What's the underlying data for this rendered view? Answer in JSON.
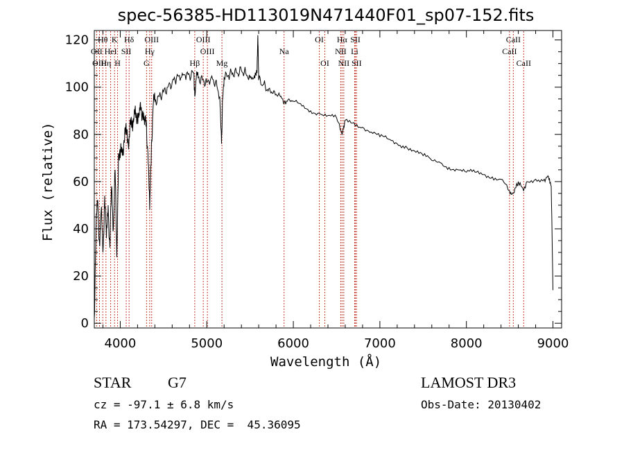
{
  "chart_data": {
    "type": "line",
    "title": "spec-56385-HD113019N471440F01_sp07-152.fits",
    "xlabel": "Wavelength (Å)",
    "ylabel": "Flux (relative)",
    "xlim": [
      3700,
      9100
    ],
    "ylim": [
      -2,
      124
    ],
    "xticks": [
      4000,
      5000,
      6000,
      7000,
      8000,
      9000
    ],
    "yticks": [
      0,
      20,
      40,
      60,
      80,
      100,
      120
    ],
    "grid": false,
    "series": [
      {
        "name": "flux",
        "x": [
          3700,
          3720,
          3740,
          3760,
          3780,
          3800,
          3820,
          3840,
          3860,
          3880,
          3900,
          3920,
          3940,
          3960,
          3980,
          4000,
          4020,
          4040,
          4060,
          4080,
          4100,
          4120,
          4140,
          4160,
          4180,
          4200,
          4220,
          4240,
          4260,
          4280,
          4300,
          4320,
          4340,
          4360,
          4380,
          4400,
          4450,
          4500,
          4550,
          4600,
          4650,
          4700,
          4750,
          4800,
          4850,
          4861,
          4880,
          4900,
          4950,
          5000,
          5050,
          5100,
          5150,
          5170,
          5183,
          5200,
          5250,
          5300,
          5350,
          5400,
          5450,
          5500,
          5550,
          5580,
          5590,
          5600,
          5650,
          5700,
          5750,
          5800,
          5850,
          5893,
          5950,
          6000,
          6100,
          6200,
          6300,
          6400,
          6500,
          6563,
          6600,
          6700,
          6800,
          6900,
          7000,
          7100,
          7200,
          7300,
          7400,
          7500,
          7600,
          7700,
          7800,
          7900,
          8000,
          8100,
          8200,
          8300,
          8400,
          8498,
          8542,
          8600,
          8662,
          8700,
          8800,
          8900,
          8950,
          8980,
          9000
        ],
        "values": [
          2,
          40,
          52,
          34,
          48,
          30,
          54,
          36,
          50,
          32,
          58,
          40,
          65,
          28,
          72,
          70,
          74,
          76,
          80,
          82,
          76,
          84,
          86,
          88,
          87,
          89,
          88,
          91,
          90,
          84,
          86,
          72,
          48,
          76,
          92,
          94,
          96,
          98,
          100,
          102,
          104,
          104,
          105,
          105,
          106,
          96,
          105,
          104,
          103,
          102,
          104,
          102,
          96,
          76,
          95,
          104,
          105,
          106,
          106,
          107,
          106,
          104,
          105,
          106,
          122,
          103,
          101,
          99,
          98,
          97,
          96,
          93,
          95,
          94,
          92,
          90,
          89,
          88,
          87,
          80,
          86,
          85,
          83,
          81,
          79,
          78,
          76,
          75,
          73,
          71,
          69,
          68,
          66,
          65,
          64,
          64,
          63,
          62,
          61,
          56,
          55,
          60,
          56,
          60,
          61,
          61,
          62,
          58,
          14
        ]
      }
    ],
    "lines": [
      {
        "label": "Hθ",
        "x": 3798,
        "row": 1
      },
      {
        "label": "K",
        "x": 3934,
        "row": 1
      },
      {
        "label": "Hδ",
        "x": 4102,
        "row": 1
      },
      {
        "label": "OIII",
        "x": 4363,
        "row": 1
      },
      {
        "label": "OIII",
        "x": 4959,
        "row": 1
      },
      {
        "label": "OI",
        "x": 6300,
        "row": 1
      },
      {
        "label": "Hα",
        "x": 6563,
        "row": 1
      },
      {
        "label": "SII",
        "x": 6717,
        "row": 1
      },
      {
        "label": "CaII",
        "x": 8542,
        "row": 1
      },
      {
        "label": "OII",
        "x": 3727,
        "row": 2
      },
      {
        "label": "HeI",
        "x": 3889,
        "row": 2
      },
      {
        "label": "SII",
        "x": 4069,
        "row": 2
      },
      {
        "label": "Hγ",
        "x": 4340,
        "row": 2
      },
      {
        "label": "OIII",
        "x": 5007,
        "row": 2
      },
      {
        "label": "Na",
        "x": 5893,
        "row": 2
      },
      {
        "label": "NII",
        "x": 6548,
        "row": 2
      },
      {
        "label": "Li",
        "x": 6708,
        "row": 2
      },
      {
        "label": "CaII",
        "x": 8498,
        "row": 2
      },
      {
        "label": "OIII",
        "x": 3760,
        "row": 3
      },
      {
        "label": "Hη",
        "x": 3835,
        "row": 3
      },
      {
        "label": "H",
        "x": 3969,
        "row": 3
      },
      {
        "label": "G",
        "x": 4304,
        "row": 3
      },
      {
        "label": "Hβ",
        "x": 4861,
        "row": 3
      },
      {
        "label": "Mg",
        "x": 5175,
        "row": 3
      },
      {
        "label": "OI",
        "x": 6364,
        "row": 3
      },
      {
        "label": "NII",
        "x": 6583,
        "row": 3
      },
      {
        "label": "SII",
        "x": 6731,
        "row": 3
      },
      {
        "label": "CaII",
        "x": 8662,
        "row": 3
      }
    ]
  },
  "info": {
    "class_label": "STAR",
    "subclass": "G7",
    "survey": "LAMOST DR3",
    "cz": "cz = -97.1 ± 6.8 km/s",
    "obs_date": "Obs-Date: 20130402",
    "coords": "RA = 173.54297, DEC =  45.36095"
  }
}
